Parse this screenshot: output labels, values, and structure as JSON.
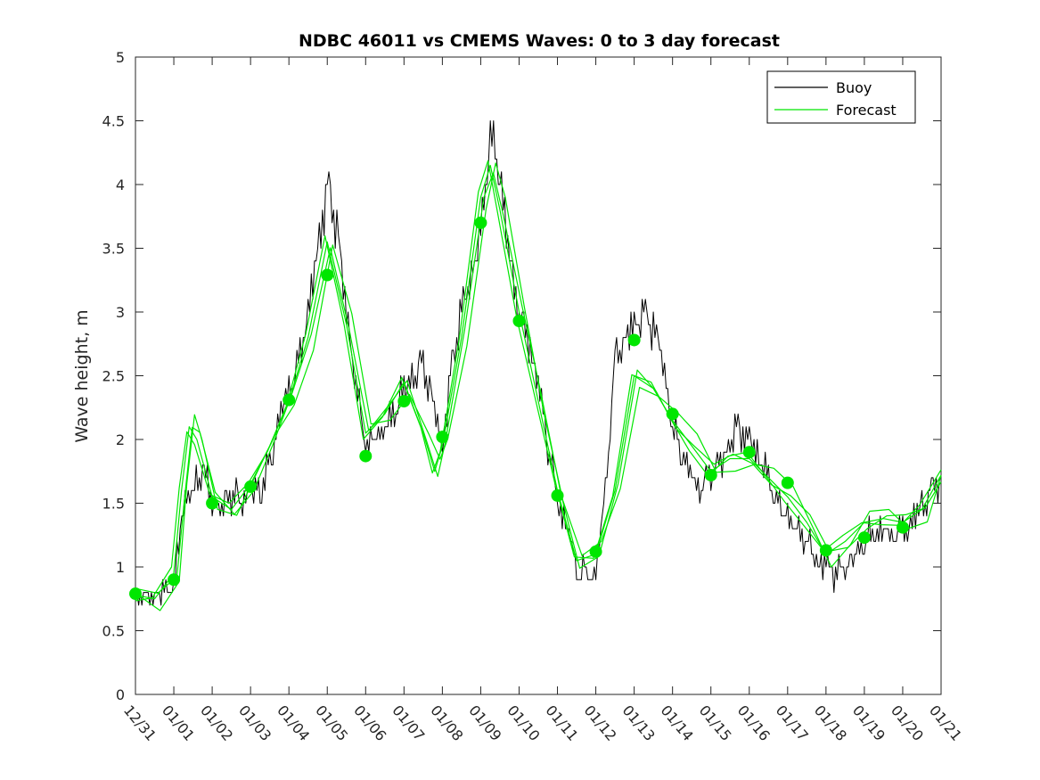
{
  "chart_data": {
    "type": "line",
    "title": "NDBC 46011 vs CMEMS Waves: 0 to 3 day forecast",
    "xlabel": "",
    "ylabel": "Wave height, m",
    "ylim": [
      0,
      5
    ],
    "y_ticks": [
      "0",
      "0.5",
      "1",
      "1.5",
      "2",
      "2.5",
      "3",
      "3.5",
      "4",
      "4.5",
      "5"
    ],
    "x_ticks": [
      "12/31",
      "01/01",
      "01/02",
      "01/03",
      "01/04",
      "01/05",
      "01/06",
      "01/07",
      "01/08",
      "01/09",
      "01/10",
      "01/11",
      "01/12",
      "01/13",
      "01/14",
      "01/15",
      "01/16",
      "01/17",
      "01/18",
      "01/19",
      "01/20",
      "01/21"
    ],
    "xlim_days": [
      0,
      21
    ],
    "grid": false,
    "legend": {
      "position": "top-right",
      "entries": [
        "Buoy",
        "Forecast"
      ]
    },
    "colors": {
      "buoy": "#000000",
      "forecast": "#00e600",
      "axes": "#262626"
    },
    "series": [
      {
        "name": "Buoy",
        "style": "black line",
        "x_days": [
          0,
          0.25,
          0.5,
          0.75,
          1,
          1.25,
          1.5,
          1.75,
          2,
          2.25,
          2.5,
          2.75,
          3,
          3.25,
          3.5,
          3.75,
          4,
          4.25,
          4.5,
          4.75,
          5,
          5.25,
          5.5,
          5.75,
          6,
          6.25,
          6.5,
          6.75,
          7,
          7.25,
          7.5,
          7.75,
          8,
          8.25,
          8.5,
          8.75,
          9,
          9.25,
          9.5,
          9.75,
          10,
          10.25,
          10.5,
          10.75,
          11,
          11.25,
          11.5,
          11.75,
          12,
          12.25,
          12.5,
          12.75,
          13,
          13.25,
          13.5,
          13.75,
          14,
          14.25,
          14.5,
          14.75,
          15,
          15.25,
          15.5,
          15.75,
          16,
          16.25,
          16.5,
          16.75,
          17,
          17.25,
          17.5,
          17.75,
          18,
          18.25,
          18.5,
          18.75,
          19,
          19.25,
          19.5,
          19.75,
          20,
          20.25,
          20.5,
          20.75,
          21
        ],
        "values": [
          0.78,
          0.75,
          0.78,
          0.82,
          0.85,
          1.5,
          1.6,
          1.8,
          1.5,
          1.45,
          1.6,
          1.5,
          1.6,
          1.6,
          1.8,
          2.2,
          2.4,
          2.6,
          3.0,
          3.5,
          4.0,
          3.7,
          3.0,
          2.4,
          2.0,
          2.0,
          2.1,
          2.2,
          2.4,
          2.5,
          2.6,
          2.3,
          1.9,
          2.6,
          3.0,
          3.3,
          3.6,
          4.4,
          4.1,
          3.4,
          3.0,
          2.8,
          2.4,
          2.0,
          1.5,
          1.3,
          1.0,
          0.95,
          0.95,
          1.6,
          2.6,
          2.8,
          2.9,
          3.0,
          2.9,
          2.6,
          2.1,
          1.9,
          1.7,
          1.6,
          1.7,
          1.8,
          2.0,
          2.1,
          2.0,
          1.85,
          1.7,
          1.5,
          1.4,
          1.3,
          1.2,
          1.05,
          1.0,
          0.95,
          1.0,
          1.1,
          1.2,
          1.25,
          1.3,
          1.25,
          1.3,
          1.35,
          1.5,
          1.6,
          1.7
        ]
      },
      {
        "name": "Forecast",
        "style": "green lines",
        "x_days": [
          0,
          0.5,
          1,
          1.2,
          1.4,
          1.6,
          2,
          2.5,
          3,
          3.5,
          4,
          4.5,
          5,
          5.5,
          6,
          6.5,
          7,
          7.5,
          7.8,
          8,
          8.5,
          9,
          9.25,
          9.5,
          10,
          10.5,
          11,
          11.5,
          12,
          12.5,
          13,
          13.5,
          14,
          14.5,
          15,
          15.5,
          16,
          16.5,
          17,
          17.5,
          18,
          18.5,
          19,
          19.5,
          20,
          20.5,
          21
        ],
        "values": [
          0.78,
          0.75,
          0.95,
          1.6,
          2.1,
          2.0,
          1.55,
          1.45,
          1.65,
          1.95,
          2.3,
          2.8,
          3.55,
          2.9,
          2.05,
          2.2,
          2.45,
          2.05,
          1.75,
          1.95,
          2.8,
          3.9,
          4.15,
          3.8,
          3.0,
          2.3,
          1.6,
          1.05,
          1.1,
          1.6,
          2.5,
          2.4,
          2.15,
          1.95,
          1.75,
          1.85,
          1.85,
          1.7,
          1.55,
          1.35,
          1.1,
          1.2,
          1.35,
          1.38,
          1.35,
          1.45,
          1.72
        ]
      },
      {
        "name": "Forecast",
        "style": "green circle markers",
        "x_days": [
          0,
          1,
          2,
          3,
          4,
          5,
          6,
          7,
          8,
          9,
          10,
          11,
          12,
          13,
          14,
          15,
          16,
          17,
          18,
          19,
          20
        ],
        "values": [
          0.79,
          0.9,
          1.5,
          1.63,
          2.31,
          3.29,
          1.87,
          2.3,
          2.02,
          3.7,
          2.93,
          1.56,
          1.12,
          2.78,
          2.2,
          1.72,
          1.9,
          1.66,
          1.13,
          1.23,
          1.31
        ]
      }
    ]
  }
}
